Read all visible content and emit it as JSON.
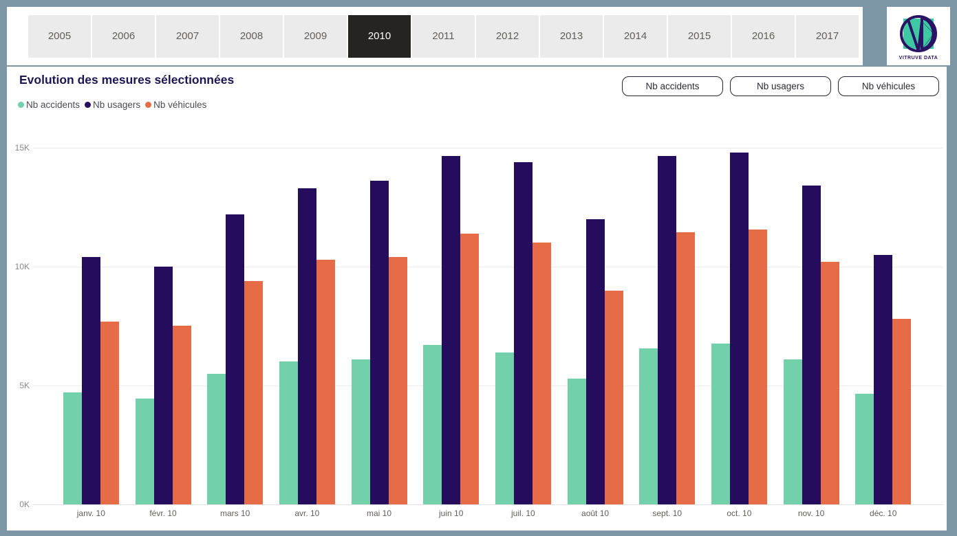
{
  "app": {
    "background": "#7c96a5"
  },
  "year_selector": {
    "years": [
      "2005",
      "2006",
      "2007",
      "2008",
      "2009",
      "2010",
      "2011",
      "2012",
      "2013",
      "2014",
      "2015",
      "2016",
      "2017"
    ],
    "selected": "2010"
  },
  "logo": {
    "text": "VITRUVE DATA",
    "square_color": "#3fc9a2",
    "mark_color": "#2a1265"
  },
  "panel": {
    "title": "Evolution des mesures sélectionnées",
    "filter_buttons": [
      {
        "label": "Nb accidents"
      },
      {
        "label": "Nb usagers"
      },
      {
        "label": "Nb véhicules"
      }
    ]
  },
  "chart_data": {
    "type": "bar",
    "title": "Evolution des mesures sélectionnées",
    "categories": [
      "janv. 10",
      "févr. 10",
      "mars 10",
      "avr. 10",
      "mai 10",
      "juin 10",
      "juil. 10",
      "août 10",
      "sept. 10",
      "oct. 10",
      "nov. 10",
      "déc. 10"
    ],
    "series": [
      {
        "name": "Nb accidents",
        "color": "#72d1ab",
        "values": [
          4700,
          4450,
          5500,
          6000,
          6100,
          6700,
          6400,
          5300,
          6550,
          6750,
          6100,
          4650
        ]
      },
      {
        "name": "Nb usagers",
        "color": "#250c5c",
        "values": [
          10400,
          10000,
          12200,
          13300,
          13600,
          14650,
          14400,
          12000,
          14650,
          14800,
          13400,
          10500
        ]
      },
      {
        "name": "Nb véhicules",
        "color": "#e56c47",
        "values": [
          7700,
          7500,
          9400,
          10300,
          10400,
          11400,
          11000,
          9000,
          11450,
          11550,
          10200,
          7800
        ]
      }
    ],
    "ylim": [
      0,
      15000
    ],
    "yticks": [
      {
        "value": 0,
        "label": "0K"
      },
      {
        "value": 5000,
        "label": "5K"
      },
      {
        "value": 10000,
        "label": "10K"
      },
      {
        "value": 15000,
        "label": "15K"
      }
    ],
    "grid": true,
    "legend_position": "top-left"
  }
}
